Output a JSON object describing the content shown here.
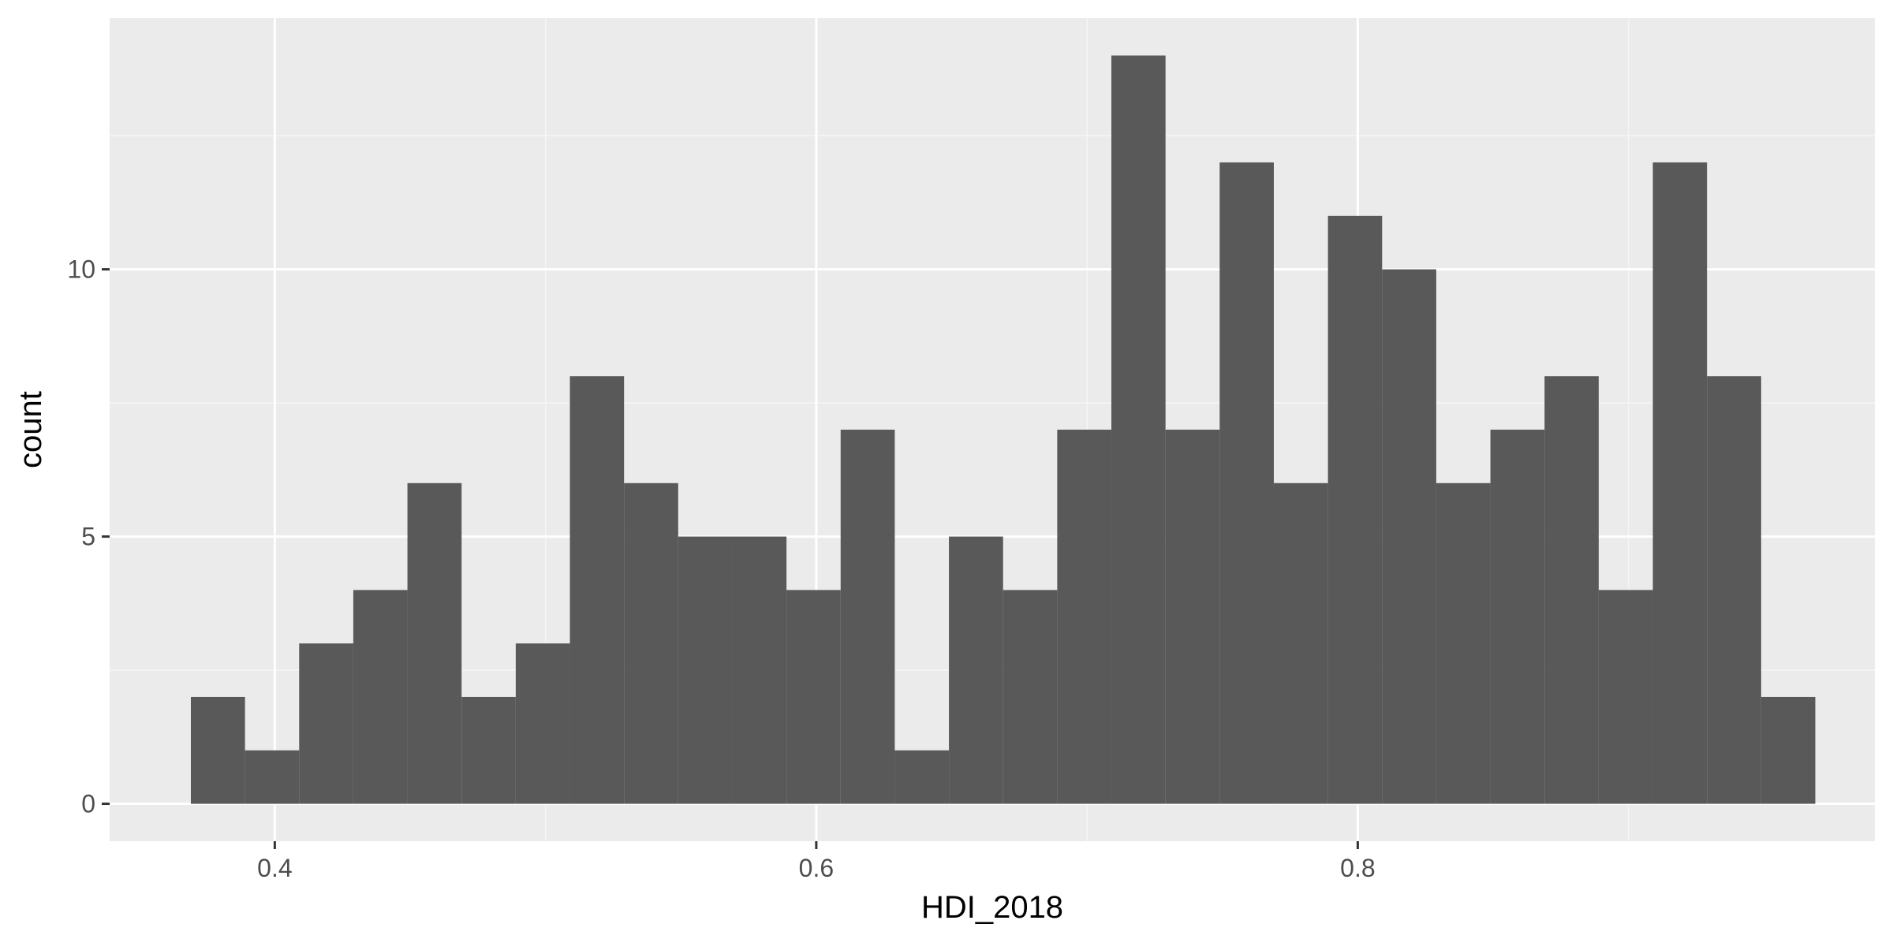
{
  "colors": {
    "panel_background": "#EBEBEB",
    "grid_major": "#FFFFFF",
    "grid_minor": "#F5F5F5",
    "bar_fill": "#595959",
    "tick_text": "#4D4D4D",
    "axis_title_text": "#000000",
    "tick_mark": "#333333"
  },
  "chart_data": {
    "type": "bar",
    "subtype": "histogram",
    "title": "",
    "xlabel": "HDI_2018",
    "ylabel": "count",
    "xlim": [
      0.339,
      0.991
    ],
    "ylim": [
      -0.7,
      14.7
    ],
    "x_ticks": [
      0.4,
      0.6,
      0.8
    ],
    "x_tick_labels": [
      "0.4",
      "0.6",
      "0.8"
    ],
    "y_ticks": [
      0,
      5,
      10
    ],
    "y_tick_labels": [
      "0",
      "5",
      "10"
    ],
    "grid": true,
    "legend": "none",
    "bin_width": 0.02,
    "bins": [
      {
        "x0": 0.369,
        "x1": 0.389,
        "count": 2
      },
      {
        "x0": 0.389,
        "x1": 0.409,
        "count": 1
      },
      {
        "x0": 0.409,
        "x1": 0.429,
        "count": 3
      },
      {
        "x0": 0.429,
        "x1": 0.449,
        "count": 4
      },
      {
        "x0": 0.449,
        "x1": 0.469,
        "count": 6
      },
      {
        "x0": 0.469,
        "x1": 0.489,
        "count": 2
      },
      {
        "x0": 0.489,
        "x1": 0.509,
        "count": 3
      },
      {
        "x0": 0.509,
        "x1": 0.529,
        "count": 8
      },
      {
        "x0": 0.529,
        "x1": 0.549,
        "count": 6
      },
      {
        "x0": 0.549,
        "x1": 0.569,
        "count": 5
      },
      {
        "x0": 0.569,
        "x1": 0.589,
        "count": 5
      },
      {
        "x0": 0.589,
        "x1": 0.609,
        "count": 4
      },
      {
        "x0": 0.609,
        "x1": 0.629,
        "count": 7
      },
      {
        "x0": 0.629,
        "x1": 0.649,
        "count": 1
      },
      {
        "x0": 0.649,
        "x1": 0.669,
        "count": 5
      },
      {
        "x0": 0.669,
        "x1": 0.689,
        "count": 4
      },
      {
        "x0": 0.689,
        "x1": 0.709,
        "count": 7
      },
      {
        "x0": 0.709,
        "x1": 0.729,
        "count": 14
      },
      {
        "x0": 0.729,
        "x1": 0.749,
        "count": 7
      },
      {
        "x0": 0.749,
        "x1": 0.769,
        "count": 12
      },
      {
        "x0": 0.769,
        "x1": 0.789,
        "count": 6
      },
      {
        "x0": 0.789,
        "x1": 0.809,
        "count": 11
      },
      {
        "x0": 0.809,
        "x1": 0.829,
        "count": 10
      },
      {
        "x0": 0.829,
        "x1": 0.849,
        "count": 6
      },
      {
        "x0": 0.849,
        "x1": 0.869,
        "count": 7
      },
      {
        "x0": 0.869,
        "x1": 0.889,
        "count": 8
      },
      {
        "x0": 0.889,
        "x1": 0.909,
        "count": 4
      },
      {
        "x0": 0.909,
        "x1": 0.929,
        "count": 12
      },
      {
        "x0": 0.929,
        "x1": 0.949,
        "count": 8
      },
      {
        "x0": 0.949,
        "x1": 0.969,
        "count": 2
      }
    ]
  }
}
